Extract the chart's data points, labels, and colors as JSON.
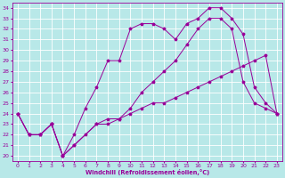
{
  "xlabel": "Windchill (Refroidissement éolien,°C)",
  "xlim": [
    -0.5,
    23.5
  ],
  "ylim": [
    19.5,
    34.5
  ],
  "yticks": [
    20,
    21,
    22,
    23,
    24,
    25,
    26,
    27,
    28,
    29,
    30,
    31,
    32,
    33,
    34
  ],
  "xticks": [
    0,
    1,
    2,
    3,
    4,
    5,
    6,
    7,
    8,
    9,
    10,
    11,
    12,
    13,
    14,
    15,
    16,
    17,
    18,
    19,
    20,
    21,
    22,
    23
  ],
  "bg_color": "#b8e8e8",
  "line_color": "#990099",
  "grid_color": "#ffffff",
  "lines": [
    {
      "x": [
        0,
        1,
        2,
        3,
        4,
        5,
        7,
        8,
        9,
        10,
        11,
        12,
        13,
        14,
        15,
        16,
        17,
        18,
        19,
        20,
        21,
        22,
        23
      ],
      "y": [
        24,
        22,
        22,
        23,
        20,
        21,
        23,
        23.5,
        23.5,
        24,
        24.5,
        25,
        25,
        25.5,
        26,
        26.5,
        27,
        27.5,
        28,
        28.5,
        29,
        29.5,
        24
      ]
    },
    {
      "x": [
        0,
        1,
        2,
        3,
        4,
        5,
        6,
        7,
        8,
        9,
        10,
        11,
        12,
        13,
        14,
        15,
        16,
        17,
        18,
        19,
        20,
        21,
        22,
        23
      ],
      "y": [
        24,
        22,
        22,
        23,
        20,
        22,
        24.5,
        26.5,
        29,
        29,
        32,
        32.5,
        32.5,
        32,
        31,
        32.5,
        33,
        34,
        34,
        33,
        31.5,
        26.5,
        25,
        24
      ]
    },
    {
      "x": [
        0,
        1,
        2,
        3,
        4,
        5,
        6,
        7,
        8,
        9,
        10,
        11,
        12,
        13,
        14,
        15,
        16,
        17,
        18,
        19,
        20,
        21,
        22,
        23
      ],
      "y": [
        24,
        22,
        22,
        23,
        20,
        21,
        22,
        23,
        23,
        23.5,
        24.5,
        26,
        27,
        28,
        29,
        30.5,
        32,
        33,
        33,
        32,
        27,
        25,
        24.5,
        24
      ]
    }
  ]
}
